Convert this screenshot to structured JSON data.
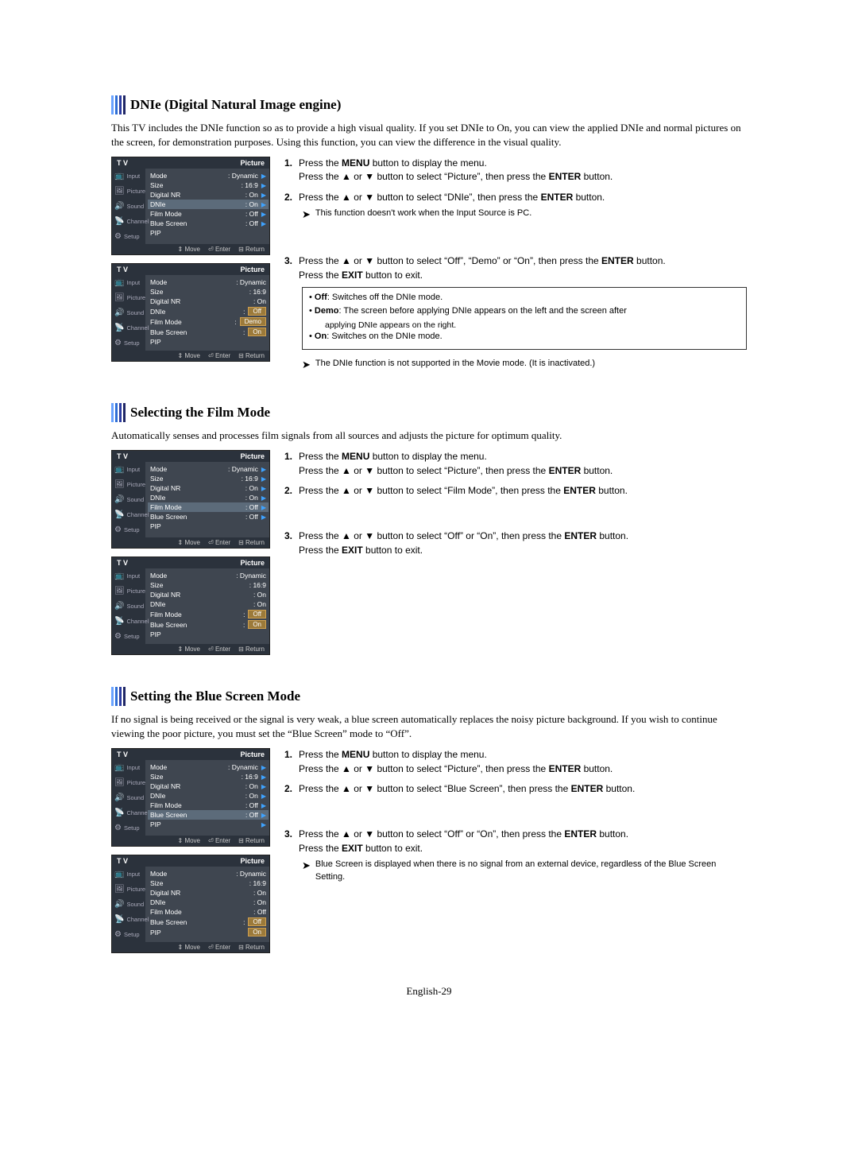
{
  "page_number": "English-29",
  "hdr_bar_colors": [
    "#6aa3ff",
    "#2f6fd6",
    "#2d3ca0",
    "#1f2666"
  ],
  "sections": [
    {
      "title": "DNIe (Digital Natural Image engine)",
      "intro": "This TV includes the DNIe function so as to provide a high visual quality. If you set DNIe to On, you can view the applied DNIe and normal pictures on the screen, for demonstration purposes. Using this function, you can view the difference in the visual quality.",
      "menus": [
        {
          "highlight": "DNIe",
          "rows": [
            {
              "label": "Mode",
              "val": ": Dynamic",
              "tri": true
            },
            {
              "label": "Size",
              "val": ": 16:9",
              "tri": true
            },
            {
              "label": "Digital NR",
              "val": ": On",
              "tri": true
            },
            {
              "label": "DNIe",
              "val": ": On",
              "tri": true,
              "hl": true
            },
            {
              "label": "Film Mode",
              "val": ": Off",
              "tri": true
            },
            {
              "label": "Blue Screen",
              "val": ": Off",
              "tri": true
            },
            {
              "label": "PIP",
              "val": "",
              "tri": false
            }
          ]
        },
        {
          "rows": [
            {
              "label": "Mode",
              "val": ": Dynamic",
              "tri": false
            },
            {
              "label": "Size",
              "val": ": 16:9",
              "tri": false
            },
            {
              "label": "Digital NR",
              "val": ": On",
              "tri": false
            },
            {
              "label": "DNIe",
              "val": "",
              "boxes": [
                "Off"
              ],
              "boxprefix": ": "
            },
            {
              "label": "Film Mode",
              "val": "",
              "boxes": [
                "Demo"
              ],
              "boxprefix": ": "
            },
            {
              "label": "Blue Screen",
              "val": "",
              "boxes": [
                "On"
              ],
              "boxprefix": ": "
            },
            {
              "label": "PIP",
              "val": "",
              "tri": false
            }
          ]
        }
      ],
      "instructions": [
        {
          "n": "1.",
          "lines": [
            "Press the <b>MENU</b> button to display the menu.",
            "Press the ▲ or ▼ button to select “Picture”, then press the <b>ENTER</b> button."
          ]
        },
        {
          "n": "2.",
          "lines": [
            "Press the ▲ or ▼ button to select “DNIe”, then press the <b>ENTER</b> button."
          ],
          "note": "This function doesn't work when the Input Source is PC."
        },
        {
          "n": "3.",
          "lines": [
            "Press the ▲ or ▼ button to select “Off”, “Demo” or “On”, then press the <b>ENTER</b> button.",
            "Press the <b>EXIT</b> button to exit."
          ],
          "box": [
            "• <b>Off</b>: Switches off the DNIe mode.",
            "• <b>Demo</b>: The screen before applying DNIe appears on the left and the screen after",
            "__applying DNIe appears on the right.",
            "• <b>On</b>: Switches on the DNIe mode."
          ],
          "post_note": "The DNIe function is not supported in the Movie mode. (It is inactivated.)"
        }
      ]
    },
    {
      "title": "Selecting the Film Mode",
      "intro": "Automatically senses and processes film signals from all sources and adjusts the picture for optimum quality.",
      "menus": [
        {
          "highlight": "Film Mode",
          "rows": [
            {
              "label": "Mode",
              "val": ": Dynamic",
              "tri": true
            },
            {
              "label": "Size",
              "val": ": 16:9",
              "tri": true
            },
            {
              "label": "Digital NR",
              "val": ": On",
              "tri": true
            },
            {
              "label": "DNIe",
              "val": ": On",
              "tri": true
            },
            {
              "label": "Film Mode",
              "val": ": Off",
              "tri": true,
              "hl": true
            },
            {
              "label": "Blue Screen",
              "val": ": Off",
              "tri": true
            },
            {
              "label": "PIP",
              "val": "",
              "tri": false
            }
          ]
        },
        {
          "rows": [
            {
              "label": "Mode",
              "val": ": Dynamic"
            },
            {
              "label": "Size",
              "val": ": 16:9"
            },
            {
              "label": "Digital NR",
              "val": ": On"
            },
            {
              "label": "DNIe",
              "val": ": On"
            },
            {
              "label": "Film Mode",
              "val": "",
              "boxes": [
                "Off"
              ],
              "boxprefix": ": "
            },
            {
              "label": "Blue Screen",
              "val": "",
              "boxes": [
                "On"
              ],
              "boxprefix": ": "
            },
            {
              "label": "PIP",
              "val": ""
            }
          ]
        }
      ],
      "instructions": [
        {
          "n": "1.",
          "lines": [
            "Press the <b>MENU</b> button to display the menu.",
            "Press the ▲ or ▼ button to select “Picture”, then press the <b>ENTER</b> button."
          ]
        },
        {
          "n": "2.",
          "lines": [
            "Press the ▲ or ▼ button to select “Film Mode”, then press the <b>ENTER</b> button."
          ]
        },
        {
          "n": "3.",
          "lines": [
            "Press the ▲ or ▼ button to select “Off” or “On”, then press the <b>ENTER</b> button.",
            "Press the <b>EXIT</b> button to exit."
          ]
        }
      ]
    },
    {
      "title": "Setting the Blue Screen Mode",
      "intro": "If no signal is being received or the signal is very weak, a blue screen automatically replaces the noisy picture background. If you wish to continue viewing the poor picture, you must set the “Blue Screen” mode to “Off”.",
      "menus": [
        {
          "highlight": "Blue Screen",
          "rows": [
            {
              "label": "Mode",
              "val": ": Dynamic",
              "tri": true
            },
            {
              "label": "Size",
              "val": ": 16:9",
              "tri": true
            },
            {
              "label": "Digital NR",
              "val": ": On",
              "tri": true
            },
            {
              "label": "DNIe",
              "val": ": On",
              "tri": true
            },
            {
              "label": "Film Mode",
              "val": ": Off",
              "tri": true
            },
            {
              "label": "Blue Screen",
              "val": ": Off",
              "tri": true,
              "hl": true
            },
            {
              "label": "PIP",
              "val": "",
              "tri": true
            }
          ]
        },
        {
          "rows": [
            {
              "label": "Mode",
              "val": ": Dynamic"
            },
            {
              "label": "Size",
              "val": ": 16:9"
            },
            {
              "label": "Digital NR",
              "val": ": On"
            },
            {
              "label": "DNIe",
              "val": ": On"
            },
            {
              "label": "Film Mode",
              "val": ": Off"
            },
            {
              "label": "Blue Screen",
              "val": "",
              "boxes": [
                "Off"
              ],
              "boxprefix": ": "
            },
            {
              "label": "PIP",
              "val": "",
              "boxes": [
                "On"
              ]
            }
          ]
        }
      ],
      "instructions": [
        {
          "n": "1.",
          "lines": [
            "Press the <b>MENU</b> button to display the menu.",
            "Press the ▲ or ▼ button to select “Picture”, then press the <b>ENTER</b> button."
          ]
        },
        {
          "n": "2.",
          "lines": [
            "Press the ▲ or ▼ button to select “Blue Screen”, then press the <b>ENTER</b> button."
          ]
        },
        {
          "n": "3.",
          "lines": [
            "Press the ▲ or ▼ button to select “Off” or “On”, then press the <b>ENTER</b> button.",
            "Press the <b>EXIT</b> button to exit."
          ],
          "note": "Blue Screen is displayed when there is no signal from an external device, regardless of the Blue Screen Setting."
        }
      ]
    }
  ],
  "tv_sidebar": [
    {
      "glyph": "📺",
      "label": "Input"
    },
    {
      "glyph": "🖼",
      "label": "Picture"
    },
    {
      "glyph": "🔊",
      "label": "Sound"
    },
    {
      "glyph": "📡",
      "label": "Channel"
    },
    {
      "glyph": "⚙",
      "label": "Setup"
    }
  ],
  "tv_header": {
    "left": "T V",
    "right": "Picture"
  },
  "tv_footer": [
    "⇕ Move",
    "⏎ Enter",
    "⊟ Return"
  ]
}
